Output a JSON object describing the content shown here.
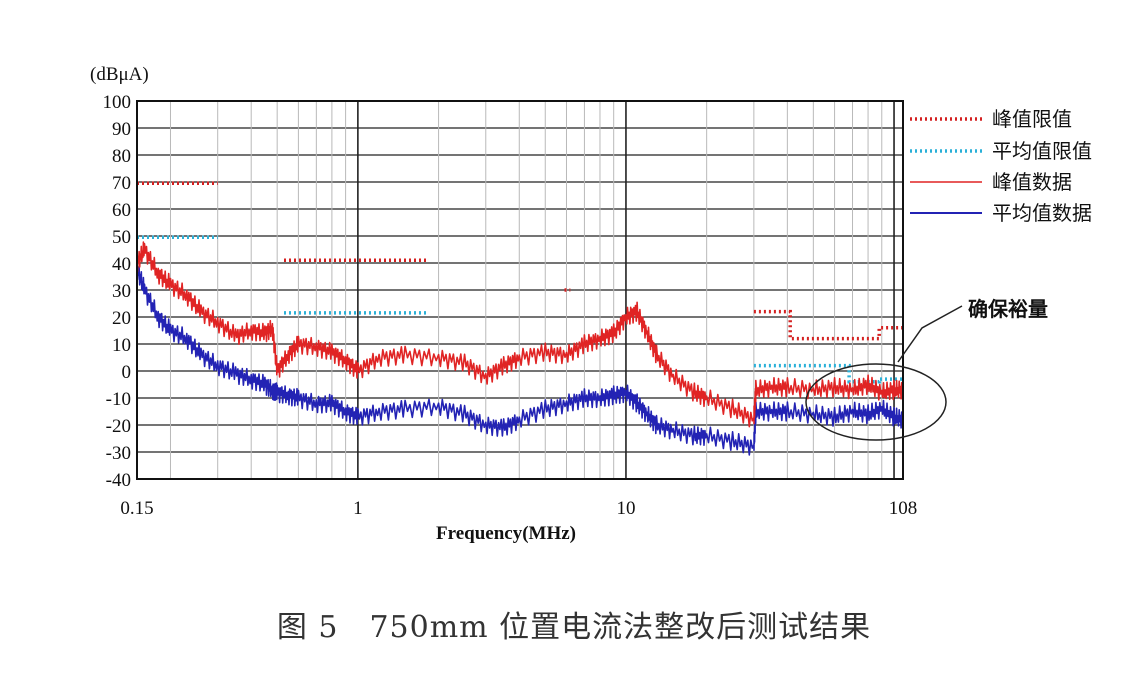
{
  "chart_data": {
    "type": "line",
    "title": "",
    "caption": "图 5　750mm 位置电流法整改后测试结果",
    "xlabel": "Frequency(MHz)",
    "ylabel": "(dBμA)",
    "x_scale": "log",
    "xlim": [
      0.15,
      108
    ],
    "ylim": [
      -40,
      100
    ],
    "x_ticks": [
      "0.15",
      "1",
      "10",
      "108"
    ],
    "y_ticks": [
      "100",
      "90",
      "80",
      "70",
      "60",
      "50",
      "40",
      "30",
      "20",
      "10",
      "0",
      "-10",
      "-20",
      "-30",
      "-40"
    ],
    "grid": true,
    "legend_position": "right",
    "annotation": "确保裕量",
    "series": [
      {
        "name": "峰值限值",
        "style": "dotted",
        "color": "#d42020",
        "segments": [
          [
            [
              0.15,
              69.5
            ],
            [
              0.3,
              69.5
            ]
          ],
          [
            [
              0.53,
              41
            ],
            [
              1.8,
              41
            ]
          ],
          [
            [
              5.9,
              30
            ],
            [
              6.2,
              30
            ]
          ],
          [
            [
              30,
              22
            ],
            [
              41,
              22
            ],
            [
              41,
              12
            ],
            [
              68,
              12
            ],
            [
              68,
              12
            ],
            [
              88,
              12
            ],
            [
              88,
              16
            ],
            [
              108,
              16
            ]
          ]
        ]
      },
      {
        "name": "平均值限值",
        "style": "dotted",
        "color": "#2ab0d8",
        "segments": [
          [
            [
              0.15,
              49.5
            ],
            [
              0.3,
              49.5
            ]
          ],
          [
            [
              0.53,
              21.5
            ],
            [
              1.8,
              21.5
            ]
          ],
          [
            [
              30,
              2
            ],
            [
              68,
              2
            ],
            [
              68,
              -4
            ],
            [
              88,
              -4
            ],
            [
              88,
              -3
            ],
            [
              108,
              -3
            ]
          ]
        ]
      },
      {
        "name": "峰值数据",
        "style": "solid",
        "color": "#e02424",
        "x": [
          0.15,
          0.16,
          0.18,
          0.2,
          0.23,
          0.26,
          0.3,
          0.35,
          0.4,
          0.45,
          0.48,
          0.5,
          0.55,
          0.6,
          0.7,
          0.8,
          0.9,
          1.0,
          1.2,
          1.5,
          2.0,
          2.5,
          3.0,
          3.5,
          4.0,
          5.0,
          6.0,
          7.0,
          8.0,
          9.0,
          10.0,
          11.0,
          12.0,
          13.0,
          15.0,
          18.0,
          20.0,
          25.0,
          30.0,
          30.5,
          35.0,
          40.0,
          50.0,
          60.0,
          70.0,
          80.0,
          90.0,
          100.0,
          108.0
        ],
        "y": [
          40,
          45,
          36,
          32,
          28,
          22,
          18,
          13,
          15,
          14,
          16,
          0,
          6,
          10,
          9,
          7,
          4,
          0,
          5,
          6,
          5,
          3,
          -2,
          2,
          5,
          7,
          6,
          10,
          12,
          14,
          20,
          22,
          14,
          6,
          -2,
          -8,
          -10,
          -14,
          -18,
          -7,
          -6,
          -6,
          -7,
          -6,
          -7,
          -5,
          -8,
          -7,
          -7
        ]
      },
      {
        "name": "平均值数据",
        "style": "solid",
        "color": "#2323b4",
        "x": [
          0.15,
          0.16,
          0.18,
          0.2,
          0.23,
          0.26,
          0.3,
          0.35,
          0.4,
          0.45,
          0.48,
          0.5,
          0.55,
          0.6,
          0.7,
          0.8,
          0.9,
          1.0,
          1.2,
          1.5,
          2.0,
          2.5,
          3.0,
          3.5,
          4.0,
          5.0,
          6.0,
          7.0,
          8.0,
          9.0,
          10.0,
          11.0,
          12.0,
          13.0,
          15.0,
          18.0,
          20.0,
          25.0,
          30.0,
          30.5,
          35.0,
          40.0,
          50.0,
          60.0,
          70.0,
          80.0,
          90.0,
          100.0,
          108.0
        ],
        "y": [
          38,
          30,
          20,
          15,
          12,
          6,
          2,
          -1,
          -3,
          -5,
          -7,
          -8,
          -9,
          -10,
          -12,
          -12,
          -15,
          -17,
          -15,
          -14,
          -13,
          -16,
          -20,
          -21,
          -18,
          -14,
          -12,
          -10,
          -10,
          -9,
          -8,
          -12,
          -16,
          -20,
          -22,
          -24,
          -24,
          -26,
          -28,
          -15,
          -15,
          -15,
          -16,
          -17,
          -15,
          -16,
          -14,
          -17,
          -18
        ]
      }
    ]
  }
}
